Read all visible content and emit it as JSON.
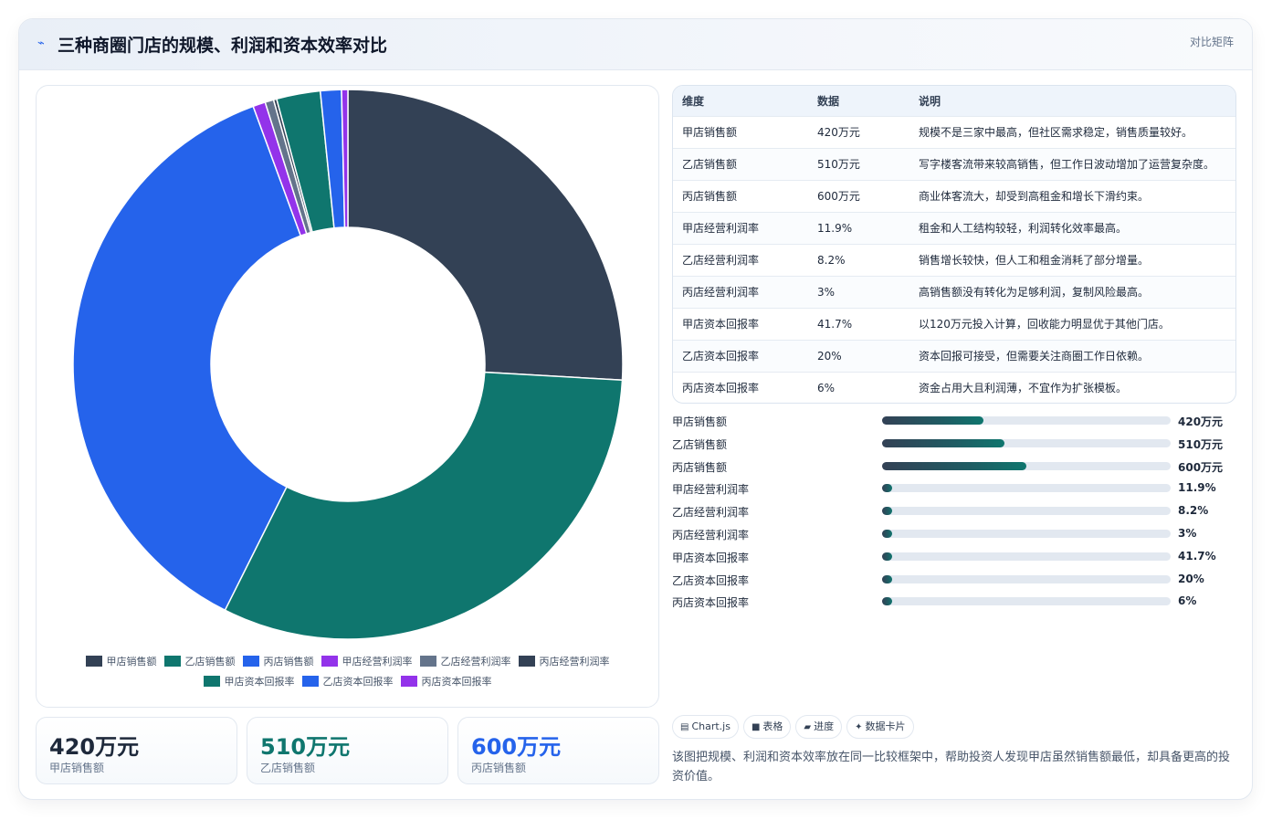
{
  "header": {
    "logo_icon": "chart-line-icon",
    "title": "三种商圈门店的规模、利润和资本效率对比",
    "tag": "对比矩阵"
  },
  "chart_data": {
    "type": "pie",
    "donut": true,
    "categories": [
      "甲店销售额",
      "乙店销售额",
      "丙店销售额",
      "甲店经营利润率",
      "乙店经营利润率",
      "丙店经营利润率",
      "甲店资本回报率",
      "乙店资本回报率",
      "丙店资本回报率"
    ],
    "values": [
      420,
      510,
      600,
      11.9,
      8.2,
      3,
      41.7,
      20,
      6
    ],
    "colors": [
      "#334155",
      "#0f766e",
      "#2563eb",
      "#9333ea",
      "#64748b",
      "#334155",
      "#0f766e",
      "#2563eb",
      "#9333ea"
    ],
    "legend_position": "bottom"
  },
  "kpis": [
    {
      "value": "420万元",
      "label": "甲店销售额",
      "color": "#1e293b"
    },
    {
      "value": "510万元",
      "label": "乙店销售额",
      "color": "#0f766e"
    },
    {
      "value": "600万元",
      "label": "丙店销售额",
      "color": "#2563eb"
    }
  ],
  "table": {
    "headers": [
      "维度",
      "数据",
      "说明"
    ],
    "rows": [
      [
        "甲店销售额",
        "420万元",
        "规模不是三家中最高，但社区需求稳定，销售质量较好。"
      ],
      [
        "乙店销售额",
        "510万元",
        "写字楼客流带来较高销售，但工作日波动增加了运营复杂度。"
      ],
      [
        "丙店销售额",
        "600万元",
        "商业体客流大，却受到高租金和增长下滑约束。"
      ],
      [
        "甲店经营利润率",
        "11.9%",
        "租金和人工结构较轻，利润转化效率最高。"
      ],
      [
        "乙店经营利润率",
        "8.2%",
        "销售增长较快，但人工和租金消耗了部分增量。"
      ],
      [
        "丙店经营利润率",
        "3%",
        "高销售额没有转化为足够利润，复制风险最高。"
      ],
      [
        "甲店资本回报率",
        "41.7%",
        "以120万元投入计算，回收能力明显优于其他门店。"
      ],
      [
        "乙店资本回报率",
        "20%",
        "资本回报可接受，但需要关注商圈工作日依赖。"
      ],
      [
        "丙店资本回报率",
        "6%",
        "资金占用大且利润薄，不宜作为扩张模板。"
      ]
    ]
  },
  "progress": [
    {
      "label": "甲店销售额",
      "value": "420万元",
      "ratio": 0.35
    },
    {
      "label": "乙店销售额",
      "value": "510万元",
      "ratio": 0.425
    },
    {
      "label": "丙店销售额",
      "value": "600万元",
      "ratio": 0.5
    },
    {
      "label": "甲店经营利润率",
      "value": "11.9%",
      "ratio": 0.0099
    },
    {
      "label": "乙店经营利润率",
      "value": "8.2%",
      "ratio": 0.0068
    },
    {
      "label": "丙店经营利润率",
      "value": "3%",
      "ratio": 0.0025
    },
    {
      "label": "甲店资本回报率",
      "value": "41.7%",
      "ratio": 0.0348
    },
    {
      "label": "乙店资本回报率",
      "value": "20%",
      "ratio": 0.0167
    },
    {
      "label": "丙店资本回报率",
      "value": "6%",
      "ratio": 0.005
    }
  ],
  "chips": [
    {
      "icon": "chart-icon",
      "glyph": "▤",
      "label": "Chart.js"
    },
    {
      "icon": "table-icon",
      "glyph": "■",
      "label": "表格"
    },
    {
      "icon": "progress-icon",
      "glyph": "▰",
      "label": "进度"
    },
    {
      "icon": "sparkle-icon",
      "glyph": "✦",
      "label": "数据卡片"
    }
  ],
  "note": "该图把规模、利润和资本效率放在同一比较框架中，帮助投资人发现甲店虽然销售额最低，却具备更高的投资价值。"
}
